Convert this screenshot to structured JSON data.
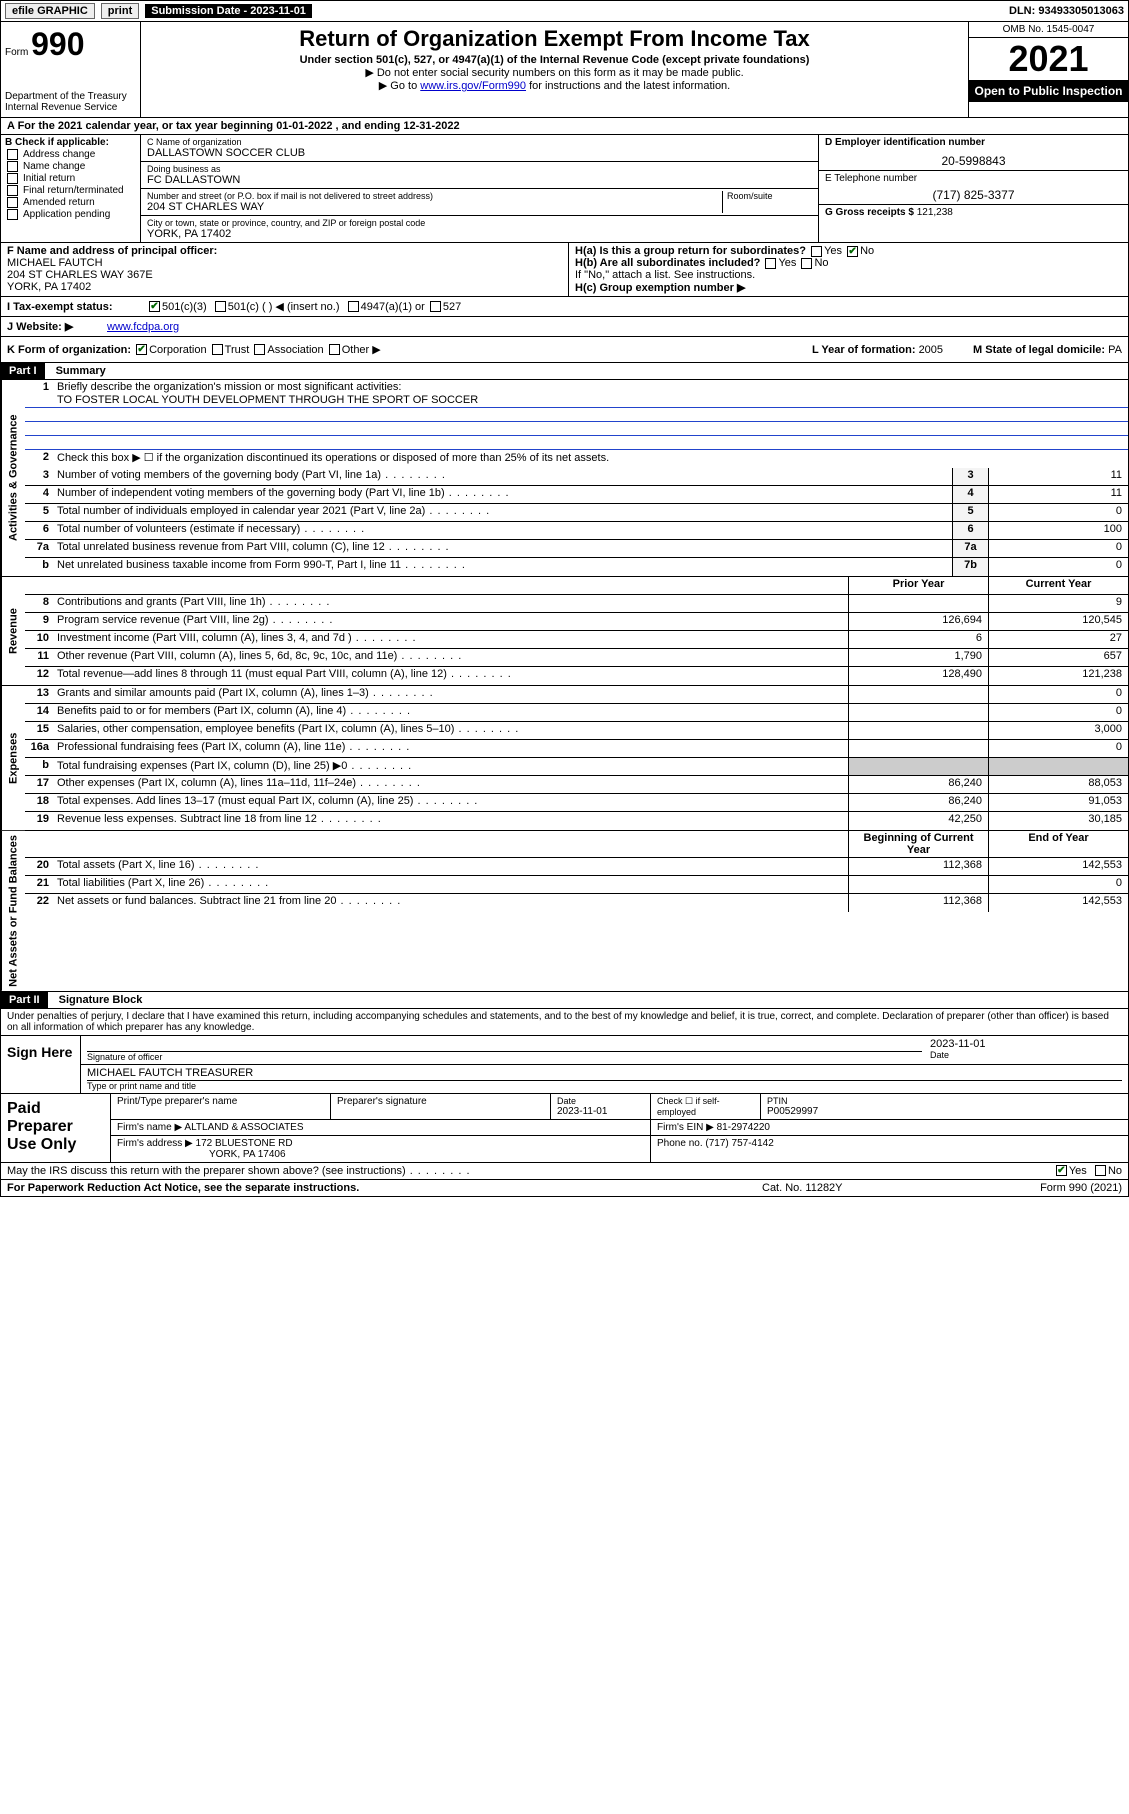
{
  "topbar": {
    "efile": "efile GRAPHIC",
    "print": "print",
    "sub_date_label": "Submission Date - 2023-11-01",
    "dln": "DLN: 93493305013063"
  },
  "header": {
    "form_label": "Form",
    "form_num": "990",
    "dept": "Department of the Treasury\nInternal Revenue Service",
    "title": "Return of Organization Exempt From Income Tax",
    "sub1": "Under section 501(c), 527, or 4947(a)(1) of the Internal Revenue Code (except private foundations)",
    "sub2": "▶ Do not enter social security numbers on this form as it may be made public.",
    "sub3_pre": "▶ Go to ",
    "sub3_link": "www.irs.gov/Form990",
    "sub3_post": " for instructions and the latest information.",
    "omb": "OMB No. 1545-0047",
    "year": "2021",
    "open_pub": "Open to Public Inspection"
  },
  "row_a": "A For the 2021 calendar year, or tax year beginning 01-01-2022      , and ending 12-31-2022",
  "col_b": {
    "title": "B Check if applicable:",
    "items": [
      "Address change",
      "Name change",
      "Initial return",
      "Final return/terminated",
      "Amended return",
      "Application pending"
    ]
  },
  "col_c": {
    "name_lbl": "C Name of organization",
    "name": "DALLASTOWN SOCCER CLUB",
    "dba_lbl": "Doing business as",
    "dba": "FC DALLASTOWN",
    "street_lbl": "Number and street (or P.O. box if mail is not delivered to street address)",
    "room_lbl": "Room/suite",
    "street": "204 ST CHARLES WAY",
    "city_lbl": "City or town, state or province, country, and ZIP or foreign postal code",
    "city": "YORK, PA  17402"
  },
  "col_d": {
    "ein_lbl": "D Employer identification number",
    "ein": "20-5998843",
    "phone_lbl": "E Telephone number",
    "phone": "(717) 825-3377",
    "gross_lbl": "G Gross receipts $",
    "gross": "121,238"
  },
  "row_f": {
    "lbl": "F Name and address of principal officer:",
    "name": "MICHAEL FAUTCH",
    "addr1": "204 ST CHARLES WAY 367E",
    "addr2": "YORK, PA  17402"
  },
  "row_h": {
    "a_lbl": "H(a)  Is this a group return for subordinates?",
    "a_yes": "Yes",
    "a_no": "No",
    "b_lbl": "H(b)  Are all subordinates included?",
    "b_note": "If \"No,\" attach a list. See instructions.",
    "c_lbl": "H(c)  Group exemption number ▶"
  },
  "row_i": {
    "lbl": "I   Tax-exempt status:",
    "o1": "501(c)(3)",
    "o2": "501(c) (    ) ◀ (insert no.)",
    "o3": "4947(a)(1) or",
    "o4": "527"
  },
  "row_j": {
    "lbl": "J   Website: ▶",
    "val": "www.fcdpa.org"
  },
  "row_k": {
    "lbl": "K Form of organization:",
    "o1": "Corporation",
    "o2": "Trust",
    "o3": "Association",
    "o4": "Other ▶",
    "l_lbl": "L Year of formation:",
    "l_val": "2005",
    "m_lbl": "M State of legal domicile:",
    "m_val": "PA"
  },
  "part1": {
    "hdr": "Part I",
    "title": "Summary",
    "side_gov": "Activities & Governance",
    "side_rev": "Revenue",
    "side_exp": "Expenses",
    "side_net": "Net Assets or Fund Balances",
    "line1_lbl": "Briefly describe the organization's mission or most significant activities:",
    "line1_val": "TO FOSTER LOCAL YOUTH DEVELOPMENT THROUGH THE SPORT OF SOCCER",
    "line2": "Check this box ▶ ☐  if the organization discontinued its operations or disposed of more than 25% of its net assets.",
    "hdr_prior": "Prior Year",
    "hdr_curr": "Current Year",
    "hdr_beg": "Beginning of Current Year",
    "hdr_end": "End of Year",
    "lines_gov": [
      {
        "n": "3",
        "t": "Number of voting members of the governing body (Part VI, line 1a)",
        "box": "3",
        "c": "11"
      },
      {
        "n": "4",
        "t": "Number of independent voting members of the governing body (Part VI, line 1b)",
        "box": "4",
        "c": "11"
      },
      {
        "n": "5",
        "t": "Total number of individuals employed in calendar year 2021 (Part V, line 2a)",
        "box": "5",
        "c": "0"
      },
      {
        "n": "6",
        "t": "Total number of volunteers (estimate if necessary)",
        "box": "6",
        "c": "100"
      },
      {
        "n": "7a",
        "t": "Total unrelated business revenue from Part VIII, column (C), line 12",
        "box": "7a",
        "c": "0"
      },
      {
        "n": "b",
        "t": "Net unrelated business taxable income from Form 990-T, Part I, line 11",
        "box": "7b",
        "c": "0"
      }
    ],
    "lines_rev": [
      {
        "n": "8",
        "t": "Contributions and grants (Part VIII, line 1h)",
        "p": "",
        "c": "9"
      },
      {
        "n": "9",
        "t": "Program service revenue (Part VIII, line 2g)",
        "p": "126,694",
        "c": "120,545"
      },
      {
        "n": "10",
        "t": "Investment income (Part VIII, column (A), lines 3, 4, and 7d )",
        "p": "6",
        "c": "27"
      },
      {
        "n": "11",
        "t": "Other revenue (Part VIII, column (A), lines 5, 6d, 8c, 9c, 10c, and 11e)",
        "p": "1,790",
        "c": "657"
      },
      {
        "n": "12",
        "t": "Total revenue—add lines 8 through 11 (must equal Part VIII, column (A), line 12)",
        "p": "128,490",
        "c": "121,238"
      }
    ],
    "lines_exp": [
      {
        "n": "13",
        "t": "Grants and similar amounts paid (Part IX, column (A), lines 1–3)",
        "p": "",
        "c": "0"
      },
      {
        "n": "14",
        "t": "Benefits paid to or for members (Part IX, column (A), line 4)",
        "p": "",
        "c": "0"
      },
      {
        "n": "15",
        "t": "Salaries, other compensation, employee benefits (Part IX, column (A), lines 5–10)",
        "p": "",
        "c": "3,000"
      },
      {
        "n": "16a",
        "t": "Professional fundraising fees (Part IX, column (A), line 11e)",
        "p": "",
        "c": "0"
      },
      {
        "n": "b",
        "t": "Total fundraising expenses (Part IX, column (D), line 25) ▶0",
        "p": "shade",
        "c": "shade"
      },
      {
        "n": "17",
        "t": "Other expenses (Part IX, column (A), lines 11a–11d, 11f–24e)",
        "p": "86,240",
        "c": "88,053"
      },
      {
        "n": "18",
        "t": "Total expenses. Add lines 13–17 (must equal Part IX, column (A), line 25)",
        "p": "86,240",
        "c": "91,053"
      },
      {
        "n": "19",
        "t": "Revenue less expenses. Subtract line 18 from line 12",
        "p": "42,250",
        "c": "30,185"
      }
    ],
    "lines_net": [
      {
        "n": "20",
        "t": "Total assets (Part X, line 16)",
        "p": "112,368",
        "c": "142,553"
      },
      {
        "n": "21",
        "t": "Total liabilities (Part X, line 26)",
        "p": "",
        "c": "0"
      },
      {
        "n": "22",
        "t": "Net assets or fund balances. Subtract line 21 from line 20",
        "p": "112,368",
        "c": "142,553"
      }
    ]
  },
  "part2": {
    "hdr": "Part II",
    "title": "Signature Block",
    "decl": "Under penalties of perjury, I declare that I have examined this return, including accompanying schedules and statements, and to the best of my knowledge and belief, it is true, correct, and complete. Declaration of preparer (other than officer) is based on all information of which preparer has any knowledge.",
    "sign_here": "Sign Here",
    "sig_officer_lbl": "Signature of officer",
    "date_lbl": "Date",
    "sig_date": "2023-11-01",
    "name_title": "MICHAEL FAUTCH TREASURER",
    "name_title_lbl": "Type or print name and title"
  },
  "prep": {
    "title": "Paid Preparer Use Only",
    "c1": "Print/Type preparer's name",
    "c2": "Preparer's signature",
    "c3_lbl": "Date",
    "c3": "2023-11-01",
    "c4_lbl": "Check ☐ if self-employed",
    "c5_lbl": "PTIN",
    "c5": "P00529997",
    "firm_name_lbl": "Firm's name    ▶",
    "firm_name": "ALTLAND & ASSOCIATES",
    "firm_ein_lbl": "Firm's EIN ▶",
    "firm_ein": "81-2974220",
    "firm_addr_lbl": "Firm's address ▶",
    "firm_addr1": "172 BLUESTONE RD",
    "firm_addr2": "YORK, PA  17406",
    "phone_lbl": "Phone no.",
    "phone": "(717) 757-4142"
  },
  "irs_discuss": {
    "q": "May the IRS discuss this return with the preparer shown above? (see instructions)",
    "yes": "Yes",
    "no": "No"
  },
  "footer": {
    "left": "For Paperwork Reduction Act Notice, see the separate instructions.",
    "center": "Cat. No. 11282Y",
    "right": "Form 990 (2021)"
  }
}
